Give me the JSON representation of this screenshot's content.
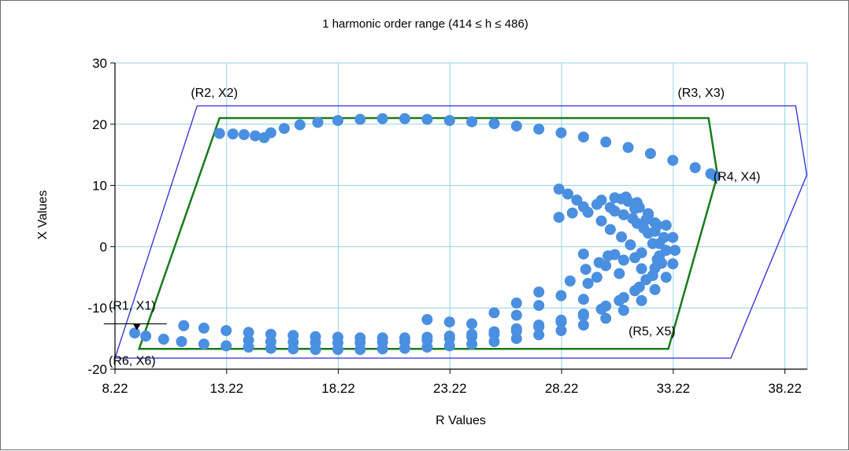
{
  "chart_data": {
    "type": "scatter",
    "title": "1 harmonic order range (414 ≤ h ≤ 486)",
    "xlabel": "R Values",
    "ylabel": "X Values",
    "xlim": [
      8.22,
      39.22
    ],
    "ylim": [
      -20,
      30
    ],
    "x_ticks": [
      "8.22",
      "13.22",
      "18.22",
      "23.22",
      "28.22",
      "33.22",
      "38.22"
    ],
    "y_ticks": [
      "30",
      "20",
      "10",
      "0",
      "-10",
      "-20"
    ],
    "grid": true,
    "colors": {
      "grid": "#8fd3e6",
      "outer_polygon": "#2b2bd6",
      "inner_polygon": "#1a7a1a",
      "points": "#4a8fe0"
    },
    "outer_polygon": [
      [
        8.22,
        -18.2
      ],
      [
        11.9,
        23
      ],
      [
        38.7,
        23
      ],
      [
        39.2,
        11.7
      ],
      [
        35.8,
        -18.2
      ]
    ],
    "inner_polygon": [
      [
        9.3,
        -16.7
      ],
      [
        12.9,
        21
      ],
      [
        34.8,
        21
      ],
      [
        35.2,
        11.7
      ],
      [
        33.0,
        -16.7
      ]
    ],
    "annotations": [
      {
        "text": "(R1, X1)",
        "x": 8.22,
        "y": -10.3
      },
      {
        "text": "(R2, X2)",
        "x": 11.9,
        "y": 24.5
      },
      {
        "text": "(R3, X3)",
        "x": 33.7,
        "y": 24.5
      },
      {
        "text": "(R4, X4)",
        "x": 35.3,
        "y": 10.8
      },
      {
        "text": "(R5, X5)",
        "x": 31.5,
        "y": -14.5
      },
      {
        "text": "(R6, X6)",
        "x": 8.22,
        "y": -19.3
      }
    ],
    "marker_point": {
      "x": 9.2,
      "y": -12.6
    },
    "series": [
      {
        "points": [
          [
            12.9,
            18.5
          ],
          [
            13.5,
            18.4
          ],
          [
            14,
            18.3
          ],
          [
            14.5,
            18.1
          ],
          [
            14.9,
            17.8
          ],
          [
            15.2,
            18.6
          ],
          [
            15.8,
            19.3
          ],
          [
            16.5,
            19.9
          ],
          [
            17.3,
            20.3
          ],
          [
            18.2,
            20.6
          ],
          [
            19.2,
            20.8
          ],
          [
            20.2,
            20.9
          ],
          [
            21.2,
            20.9
          ],
          [
            22.2,
            20.8
          ],
          [
            23.2,
            20.6
          ],
          [
            24.2,
            20.4
          ],
          [
            25.2,
            20.1
          ],
          [
            26.2,
            19.7
          ],
          [
            27.2,
            19.2
          ],
          [
            28.2,
            18.6
          ],
          [
            29.2,
            17.9
          ],
          [
            30.2,
            17.1
          ],
          [
            31.2,
            16.2
          ],
          [
            32.2,
            15.2
          ],
          [
            33.2,
            14.1
          ],
          [
            34.2,
            12.9
          ],
          [
            34.9,
            11.9
          ],
          [
            35.1,
            11.5
          ]
        ]
      },
      {
        "points": [
          [
            9.1,
            -14.1
          ],
          [
            9.6,
            -14.6
          ],
          [
            10.4,
            -15.1
          ],
          [
            11.2,
            -15.5
          ],
          [
            12.2,
            -15.9
          ],
          [
            13.2,
            -16.2
          ],
          [
            14.2,
            -16.4
          ],
          [
            15.2,
            -16.6
          ],
          [
            16.2,
            -16.7
          ],
          [
            17.2,
            -16.8
          ],
          [
            18.2,
            -16.8
          ],
          [
            19.2,
            -16.8
          ],
          [
            20.2,
            -16.7
          ],
          [
            21.2,
            -16.6
          ],
          [
            22.2,
            -16.4
          ],
          [
            23.2,
            -16.2
          ],
          [
            24.2,
            -15.9
          ],
          [
            25.2,
            -15.5
          ],
          [
            26.2,
            -15.0
          ],
          [
            27.2,
            -14.4
          ],
          [
            28.2,
            -13.7
          ],
          [
            29.2,
            -12.8
          ],
          [
            30.2,
            -11.7
          ],
          [
            31.0,
            -10.4
          ],
          [
            31.8,
            -8.8
          ],
          [
            32.4,
            -7.0
          ],
          [
            32.9,
            -5.0
          ],
          [
            33.2,
            -2.8
          ],
          [
            33.3,
            -0.6
          ],
          [
            33.2,
            1.5
          ],
          [
            32.9,
            3.5
          ]
        ]
      },
      {
        "points": [
          [
            11.3,
            -12.9
          ],
          [
            12.2,
            -13.3
          ],
          [
            13.2,
            -13.7
          ],
          [
            14.2,
            -14.0
          ],
          [
            15.2,
            -14.3
          ],
          [
            16.2,
            -14.5
          ],
          [
            17.2,
            -14.7
          ],
          [
            18.2,
            -14.8
          ],
          [
            19.2,
            -14.9
          ],
          [
            20.2,
            -14.9
          ],
          [
            21.2,
            -14.9
          ],
          [
            22.2,
            -14.8
          ],
          [
            23.2,
            -14.6
          ],
          [
            24.2,
            -14.3
          ],
          [
            25.2,
            -13.9
          ],
          [
            26.2,
            -13.4
          ],
          [
            27.2,
            -12.8
          ],
          [
            28.2,
            -12.0
          ],
          [
            29.2,
            -11.0
          ],
          [
            30.2,
            -9.7
          ],
          [
            31.0,
            -8.3
          ],
          [
            31.7,
            -6.6
          ],
          [
            32.3,
            -4.7
          ],
          [
            32.7,
            -2.7
          ],
          [
            32.9,
            -0.6
          ],
          [
            32.8,
            1.5
          ],
          [
            32.5,
            3.5
          ],
          [
            32.1,
            5.4
          ],
          [
            31.6,
            7.2
          ],
          [
            31.1,
            8.1
          ]
        ]
      },
      {
        "points": [
          [
            14.2,
            -15.3
          ],
          [
            15.2,
            -15.5
          ],
          [
            16.2,
            -15.6
          ],
          [
            17.2,
            -15.7
          ],
          [
            18.2,
            -15.7
          ],
          [
            19.2,
            -15.7
          ],
          [
            20.2,
            -15.6
          ],
          [
            21.2,
            -15.5
          ],
          [
            22.2,
            -15.3
          ],
          [
            23.2,
            -15.0
          ],
          [
            24.2,
            -14.7
          ],
          [
            25.2,
            -14.3
          ],
          [
            26.2,
            -13.8
          ],
          [
            27.2,
            -13.1
          ],
          [
            28.2,
            -12.3
          ],
          [
            29.2,
            -11.3
          ],
          [
            30.0,
            -10.2
          ],
          [
            30.8,
            -8.8
          ],
          [
            31.5,
            -7.2
          ],
          [
            32.0,
            -5.4
          ],
          [
            32.4,
            -3.5
          ],
          [
            32.6,
            -1.5
          ],
          [
            32.6,
            0.5
          ],
          [
            32.4,
            2.5
          ],
          [
            32.0,
            4.4
          ],
          [
            31.5,
            6.2
          ],
          [
            30.9,
            7.8
          ]
        ]
      },
      {
        "points": [
          [
            28.1,
            9.4
          ],
          [
            28.5,
            8.6
          ],
          [
            28.9,
            7.6
          ],
          [
            29.2,
            6.5
          ],
          [
            28.7,
            5.5
          ],
          [
            28.1,
            4.8
          ],
          [
            29.4,
            5.6
          ],
          [
            30.0,
            4.2
          ],
          [
            30.4,
            2.8
          ],
          [
            30.9,
            1.6
          ],
          [
            31.3,
            0.3
          ],
          [
            30.6,
            -1.3
          ],
          [
            29.9,
            -2.6
          ],
          [
            29.3,
            -3.7
          ],
          [
            30.2,
            -3.1
          ],
          [
            31.0,
            -2.2
          ],
          [
            31.8,
            -1.0
          ],
          [
            32.3,
            0.5
          ],
          [
            32.1,
            2.2
          ],
          [
            31.6,
            3.8
          ],
          [
            31.0,
            5.2
          ],
          [
            30.4,
            6.4
          ],
          [
            30.0,
            7.6
          ],
          [
            30.6,
            8.0
          ],
          [
            31.2,
            7.4
          ],
          [
            31.7,
            6.4
          ],
          [
            32.1,
            5.2
          ],
          [
            32.4,
            3.9
          ],
          [
            30.3,
            -1.5
          ],
          [
            31.5,
            -1.8
          ],
          [
            32.5,
            -2.1
          ],
          [
            29.2,
            -1.2
          ],
          [
            29.8,
            -5.0
          ],
          [
            30.8,
            -4.4
          ],
          [
            31.8,
            -3.6
          ],
          [
            28.6,
            -5.6
          ],
          [
            29.4,
            -6.0
          ],
          [
            27.2,
            -7.4
          ],
          [
            28.2,
            -8.0
          ],
          [
            29.2,
            -8.6
          ],
          [
            26.2,
            -9.2
          ],
          [
            27.2,
            -9.6
          ],
          [
            25.2,
            -10.8
          ],
          [
            26.2,
            -11.2
          ],
          [
            22.2,
            -11.9
          ],
          [
            23.2,
            -12.3
          ],
          [
            24.2,
            -12.6
          ],
          [
            29.8,
            6.9
          ],
          [
            30.6,
            5.8
          ],
          [
            31.4,
            4.6
          ],
          [
            31.9,
            3.0
          ]
        ]
      }
    ]
  }
}
